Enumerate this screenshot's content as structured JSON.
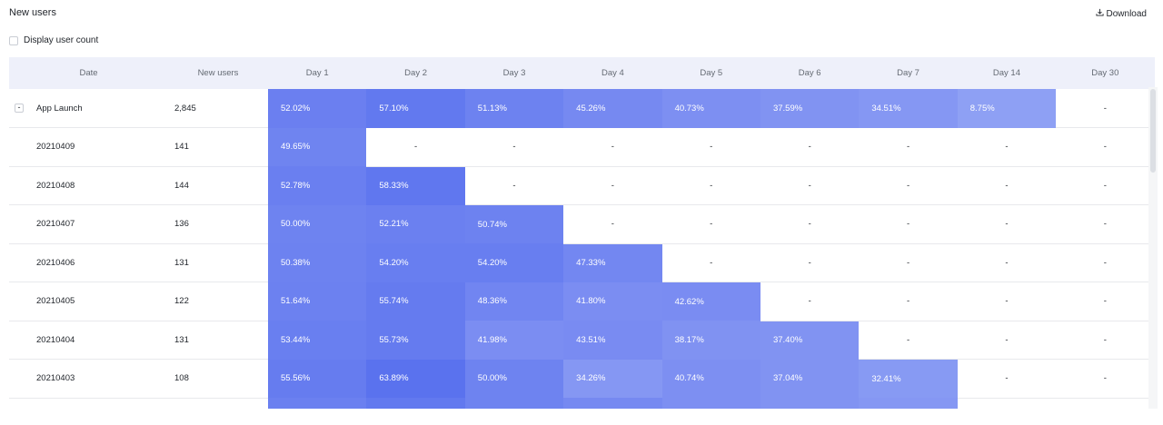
{
  "title": "New users",
  "download_label": "Download",
  "toggle_label": "Display user count",
  "columns": [
    "Date",
    "New users",
    "Day 1",
    "Day 2",
    "Day 3",
    "Day 4",
    "Day 5",
    "Day 6",
    "Day 7",
    "Day 14",
    "Day 30"
  ],
  "collapse_symbol": "-",
  "rows": [
    {
      "date": "App Launch",
      "users": "2,845",
      "expandable": true,
      "cells": [
        {
          "t": "52.02%",
          "c": "#6b7ff0"
        },
        {
          "t": "57.10%",
          "c": "#6279ef"
        },
        {
          "t": "51.13%",
          "c": "#6d82f0"
        },
        {
          "t": "45.26%",
          "c": "#7689f1"
        },
        {
          "t": "40.73%",
          "c": "#7d8ff2"
        },
        {
          "t": "37.59%",
          "c": "#8193f2"
        },
        {
          "t": "34.51%",
          "c": "#8597f3"
        },
        {
          "t": "8.75%",
          "c": "#8ea0f4"
        },
        {
          "t": "-"
        }
      ]
    },
    {
      "date": "20210409",
      "users": "141",
      "cells": [
        {
          "t": "49.65%",
          "c": "#6f84f0"
        },
        {
          "t": "-"
        },
        {
          "t": "-"
        },
        {
          "t": "-"
        },
        {
          "t": "-"
        },
        {
          "t": "-"
        },
        {
          "t": "-"
        },
        {
          "t": "-"
        },
        {
          "t": "-"
        }
      ]
    },
    {
      "date": "20210408",
      "users": "144",
      "cells": [
        {
          "t": "52.78%",
          "c": "#6a7ff0"
        },
        {
          "t": "58.33%",
          "c": "#6077ef"
        },
        {
          "t": "-"
        },
        {
          "t": "-"
        },
        {
          "t": "-"
        },
        {
          "t": "-"
        },
        {
          "t": "-"
        },
        {
          "t": "-"
        },
        {
          "t": "-"
        }
      ]
    },
    {
      "date": "20210407",
      "users": "136",
      "cells": [
        {
          "t": "50.00%",
          "c": "#6e83f0"
        },
        {
          "t": "52.21%",
          "c": "#6b80f0"
        },
        {
          "t": "50.74%",
          "c": "#6d82f0"
        },
        {
          "t": "-"
        },
        {
          "t": "-"
        },
        {
          "t": "-"
        },
        {
          "t": "-"
        },
        {
          "t": "-"
        },
        {
          "t": "-"
        }
      ]
    },
    {
      "date": "20210406",
      "users": "131",
      "cells": [
        {
          "t": "50.38%",
          "c": "#6d82f0"
        },
        {
          "t": "54.20%",
          "c": "#687ef0"
        },
        {
          "t": "54.20%",
          "c": "#687ef0"
        },
        {
          "t": "47.33%",
          "c": "#7387f1"
        },
        {
          "t": "-"
        },
        {
          "t": "-"
        },
        {
          "t": "-"
        },
        {
          "t": "-"
        },
        {
          "t": "-"
        }
      ]
    },
    {
      "date": "20210405",
      "users": "122",
      "cells": [
        {
          "t": "51.64%",
          "c": "#6c81f0"
        },
        {
          "t": "55.74%",
          "c": "#657bef"
        },
        {
          "t": "48.36%",
          "c": "#7185f1"
        },
        {
          "t": "41.80%",
          "c": "#7b8df2"
        },
        {
          "t": "42.62%",
          "c": "#7a8cf2"
        },
        {
          "t": "-"
        },
        {
          "t": "-"
        },
        {
          "t": "-"
        },
        {
          "t": "-"
        }
      ]
    },
    {
      "date": "20210404",
      "users": "131",
      "cells": [
        {
          "t": "53.44%",
          "c": "#697ff0"
        },
        {
          "t": "55.73%",
          "c": "#657bef"
        },
        {
          "t": "41.98%",
          "c": "#7b8df2"
        },
        {
          "t": "43.51%",
          "c": "#798bf2"
        },
        {
          "t": "38.17%",
          "c": "#8092f2"
        },
        {
          "t": "37.40%",
          "c": "#8193f2"
        },
        {
          "t": "-"
        },
        {
          "t": "-"
        },
        {
          "t": "-"
        }
      ]
    },
    {
      "date": "20210403",
      "users": "108",
      "cells": [
        {
          "t": "55.56%",
          "c": "#667cef"
        },
        {
          "t": "63.89%",
          "c": "#5a72ee"
        },
        {
          "t": "50.00%",
          "c": "#6e83f0"
        },
        {
          "t": "34.26%",
          "c": "#8597f3"
        },
        {
          "t": "40.74%",
          "c": "#7d8ff2"
        },
        {
          "t": "37.04%",
          "c": "#8193f2"
        },
        {
          "t": "32.41%",
          "c": "#879af3"
        },
        {
          "t": "-"
        },
        {
          "t": "-"
        }
      ]
    },
    {
      "date": "",
      "users": "",
      "cells": [
        {
          "t": "",
          "c": "#6b80f0"
        },
        {
          "t": "",
          "c": "#6279ef"
        },
        {
          "t": "",
          "c": "#6e83f0"
        },
        {
          "t": "",
          "c": "#7689f1"
        },
        {
          "t": "",
          "c": "#7d8ff2"
        },
        {
          "t": "",
          "c": "#8193f2"
        },
        {
          "t": "",
          "c": "#8597f3"
        },
        {
          "t": ""
        },
        {
          "t": ""
        }
      ]
    }
  ]
}
